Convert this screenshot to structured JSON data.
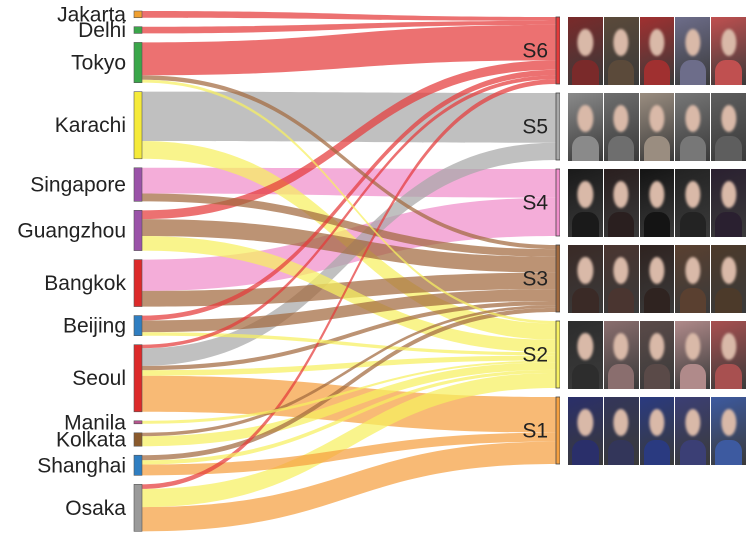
{
  "chart_data": {
    "type": "sankey",
    "sources": [
      {
        "name": "Jakarta",
        "value": 1,
        "color": "#f0a030"
      },
      {
        "name": "Delhi",
        "value": 1,
        "color": "#3aa64a"
      },
      {
        "name": "Tokyo",
        "value": 6,
        "color": "#3aa64a"
      },
      {
        "name": "Karachi",
        "value": 10,
        "color": "#f5ea3a"
      },
      {
        "name": "Singapore",
        "value": 5,
        "color": "#9a52a8"
      },
      {
        "name": "Guangzhou",
        "value": 6,
        "color": "#9a52a8"
      },
      {
        "name": "Bangkok",
        "value": 7,
        "color": "#dc2a2a"
      },
      {
        "name": "Beijing",
        "value": 3,
        "color": "#2f7ec1"
      },
      {
        "name": "Seoul",
        "value": 10,
        "color": "#dc2a2a"
      },
      {
        "name": "Manila",
        "value": 0.4,
        "color": "#b8548f"
      },
      {
        "name": "Kolkata",
        "value": 2,
        "color": "#8a5a2c"
      },
      {
        "name": "Shanghai",
        "value": 3,
        "color": "#2f7ec1"
      },
      {
        "name": "Osaka",
        "value": 7,
        "color": "#9a9a9a"
      }
    ],
    "targets": [
      {
        "name": "S6",
        "value": 10,
        "color": "#e43a3a"
      },
      {
        "name": "S5",
        "value": 10,
        "color": "#a8a8a8"
      },
      {
        "name": "S4",
        "value": 10,
        "color": "#f08ecb"
      },
      {
        "name": "S3",
        "value": 10,
        "color": "#a26a3e"
      },
      {
        "name": "S2",
        "value": 10,
        "color": "#f7f060"
      },
      {
        "name": "S1",
        "value": 10,
        "color": "#f5a040"
      }
    ],
    "links": [
      {
        "source": "Jakarta",
        "target": "S6",
        "value": 0.5
      },
      {
        "source": "Delhi",
        "target": "S6",
        "value": 0.5
      },
      {
        "source": "Tokyo",
        "target": "S6",
        "value": 4.5
      },
      {
        "source": "Tokyo",
        "target": "S3",
        "value": 0.6
      },
      {
        "source": "Tokyo",
        "target": "S2",
        "value": 0.4
      },
      {
        "source": "Karachi",
        "target": "S5",
        "value": 7.2
      },
      {
        "source": "Karachi",
        "target": "S2",
        "value": 2.6
      },
      {
        "source": "Singapore",
        "target": "S4",
        "value": 3.6
      },
      {
        "source": "Singapore",
        "target": "S3",
        "value": 1.1
      },
      {
        "source": "Guangzhou",
        "target": "S6",
        "value": 1.2
      },
      {
        "source": "Guangzhou",
        "target": "S3",
        "value": 2.3
      },
      {
        "source": "Guangzhou",
        "target": "S2",
        "value": 2.0
      },
      {
        "source": "Bangkok",
        "target": "S4",
        "value": 4.8
      },
      {
        "source": "Bangkok",
        "target": "S3",
        "value": 2.4
      },
      {
        "source": "Beijing",
        "target": "S6",
        "value": 0.7
      },
      {
        "source": "Beijing",
        "target": "S3",
        "value": 1.7
      },
      {
        "source": "Beijing",
        "target": "S2",
        "value": 0.5
      },
      {
        "source": "Seoul",
        "target": "S5",
        "value": 2.5
      },
      {
        "source": "Seoul",
        "target": "S6",
        "value": 0.5
      },
      {
        "source": "Seoul",
        "target": "S3",
        "value": 0.6
      },
      {
        "source": "Seoul",
        "target": "S2",
        "value": 0.8
      },
      {
        "source": "Seoul",
        "target": "S1",
        "value": 5.1
      },
      {
        "source": "Manila",
        "target": "S2",
        "value": 0.3
      },
      {
        "source": "Kolkata",
        "target": "S2",
        "value": 1.2
      },
      {
        "source": "Kolkata",
        "target": "S3",
        "value": 0.4
      },
      {
        "source": "Shanghai",
        "target": "S3",
        "value": 0.6
      },
      {
        "source": "Shanghai",
        "target": "S2",
        "value": 0.5
      },
      {
        "source": "Shanghai",
        "target": "S1",
        "value": 1.3
      },
      {
        "source": "Osaka",
        "target": "S6",
        "value": 0.6
      },
      {
        "source": "Osaka",
        "target": "S2",
        "value": 2.4
      },
      {
        "source": "Osaka",
        "target": "S1",
        "value": 3.2
      }
    ],
    "photo_groups": [
      {
        "target": "S6",
        "tones": [
          "#7a2a2a",
          "#5b4a3a",
          "#a03030",
          "#6d6d8a",
          "#c05050"
        ]
      },
      {
        "target": "S5",
        "tones": [
          "#8a8a8a",
          "#6e6e6e",
          "#9a8d80",
          "#777777",
          "#5e5e5e"
        ]
      },
      {
        "target": "S4",
        "tones": [
          "#1a1a1a",
          "#2a1f1f",
          "#141414",
          "#232323",
          "#2a2030"
        ]
      },
      {
        "target": "S3",
        "tones": [
          "#3a2a26",
          "#4a3530",
          "#2f2320",
          "#5a4030",
          "#4c3a2a"
        ]
      },
      {
        "target": "S2",
        "tones": [
          "#2d2d2d",
          "#8a6e6e",
          "#5a4a48",
          "#b08a8a",
          "#a85050"
        ]
      },
      {
        "target": "S1",
        "tones": [
          "#2a2f6a",
          "#33365a",
          "#2a3a80",
          "#3b3f75",
          "#3d5aa0"
        ]
      }
    ]
  }
}
